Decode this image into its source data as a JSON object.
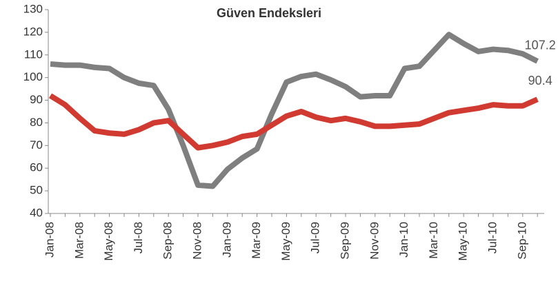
{
  "chart_data": {
    "type": "line",
    "title": "Güven Endeksleri",
    "categories": [
      "Jan-08",
      null,
      "Mar-08",
      null,
      "May-08",
      null,
      "Jul-08",
      null,
      "Sep-08",
      null,
      "Nov-08",
      null,
      "Jan-09",
      null,
      "Mar-09",
      null,
      "May-09",
      null,
      "Jul-09",
      null,
      "Sep-09",
      null,
      "Nov-09",
      null,
      "Jan-10",
      null,
      "Mar-10",
      null,
      "May-10",
      null,
      "Jul-10",
      null,
      "Sep-10",
      null
    ],
    "series": [
      {
        "name": "Gray",
        "color": "#7f7f7f",
        "values": [
          106,
          105.5,
          105.5,
          104.5,
          104,
          100,
          97.5,
          96.5,
          86,
          70,
          52.5,
          52,
          59.5,
          64.5,
          68.5,
          84,
          98,
          100.5,
          101.5,
          99,
          96,
          91.5,
          92,
          92,
          104,
          105,
          112,
          119,
          115,
          111.5,
          112.5,
          112,
          110.5,
          107.2
        ]
      },
      {
        "name": "Red",
        "color": "#d03a30",
        "values": [
          92,
          88,
          82,
          76.5,
          75.5,
          75,
          77,
          80,
          81,
          75,
          69,
          70,
          71.5,
          74,
          75,
          79,
          83,
          85,
          82.5,
          81,
          82,
          80.5,
          78.5,
          78.5,
          79,
          79.5,
          82,
          84.5,
          85.5,
          86.5,
          88,
          87.5,
          87.5,
          90.4
        ]
      }
    ],
    "ylim": [
      40,
      130
    ],
    "yticks": [
      40,
      50,
      60,
      70,
      80,
      90,
      100,
      110,
      120,
      130
    ]
  }
}
